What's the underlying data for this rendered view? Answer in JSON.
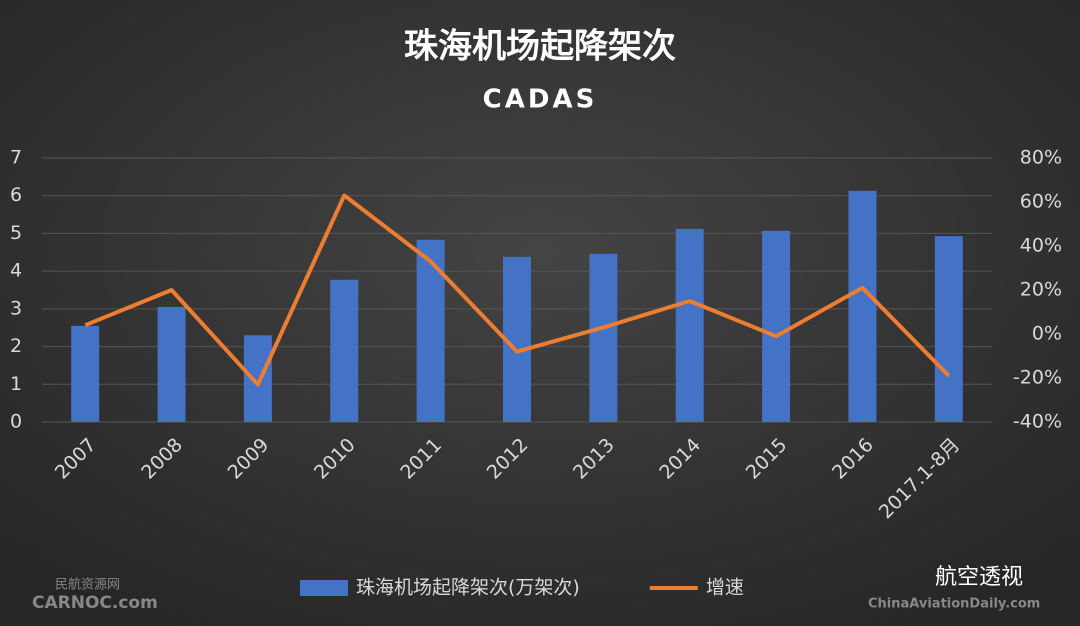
{
  "chart_data": {
    "type": "combo",
    "title": "珠海机场起降架次",
    "subtitle": "CADAS",
    "categories": [
      "2007",
      "2008",
      "2009",
      "2010",
      "2011",
      "2012",
      "2013",
      "2014",
      "2015",
      "2016",
      "2017.1-8月"
    ],
    "series": [
      {
        "name": "珠海机场起降架次(万架次)",
        "type": "bar",
        "color": "#4472c4",
        "axis": "y",
        "values": [
          2.55,
          3.05,
          2.3,
          3.77,
          4.83,
          4.38,
          4.46,
          5.12,
          5.07,
          6.13,
          4.93
        ]
      },
      {
        "name": "增速",
        "type": "line",
        "color": "#ed7d31",
        "axis": "y2",
        "values": [
          4,
          20,
          -23,
          63,
          33,
          -8,
          3,
          15,
          -1,
          21,
          -19
        ]
      }
    ],
    "ylim": [
      0,
      7
    ],
    "yticks": [
      0,
      1,
      2,
      3,
      4,
      5,
      6,
      7
    ],
    "y2lim": [
      -40,
      80
    ],
    "y2ticks": [
      {
        "value": -40,
        "label": "-40%"
      },
      {
        "value": -20,
        "label": "-20%"
      },
      {
        "value": 0,
        "label": "0%"
      },
      {
        "value": 20,
        "label": "20%"
      },
      {
        "value": 40,
        "label": "40%"
      },
      {
        "value": 60,
        "label": "60%"
      },
      {
        "value": 80,
        "label": "80%"
      }
    ],
    "grid": true,
    "legend": "bottom",
    "annotations": [
      "民航资源网",
      "CARNOC.com",
      "航空透视",
      "ChinaAviationDaily.com"
    ]
  }
}
